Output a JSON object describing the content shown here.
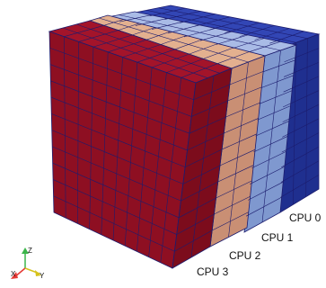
{
  "figure": {
    "partitions": [
      {
        "label": "CPU 0",
        "color": "#1f2f8f",
        "top_color": "#3246b5"
      },
      {
        "label": "CPU 1",
        "color": "#7f98cf",
        "top_color": "#a9bbe6"
      },
      {
        "label": "CPU 2",
        "color": "#c98f74",
        "top_color": "#e3b08f"
      },
      {
        "label": "CPU 3",
        "color": "#8e0f22",
        "top_color": "#a3142a"
      }
    ],
    "grid_line_color": "#1c1c6e"
  },
  "axes": {
    "z_label": "Z",
    "x_label": "X",
    "y_label": "Y",
    "z_color": "#3bb54a",
    "x_color": "#e53935",
    "y_color": "#d6c21c"
  }
}
